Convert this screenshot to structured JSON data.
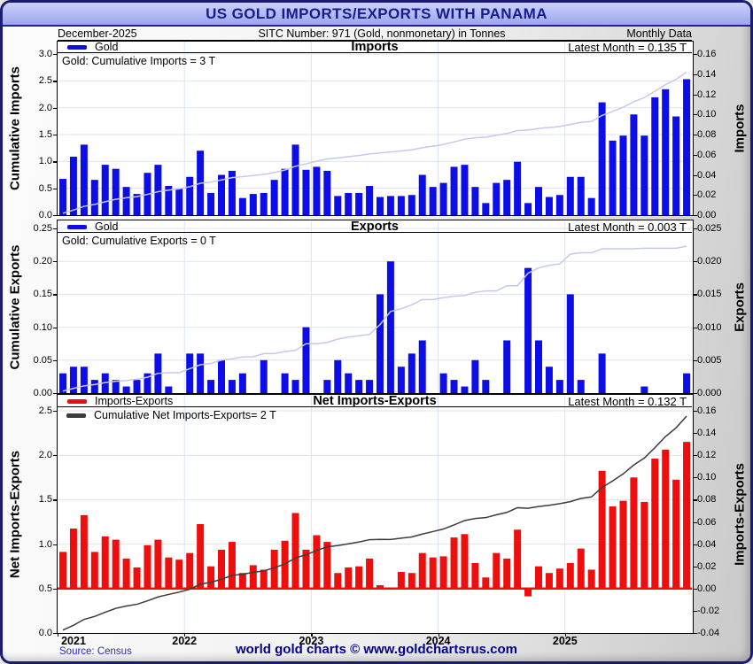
{
  "header": {
    "title": "US GOLD IMPORTS/EXPORTS WITH PANAMA"
  },
  "subheader": {
    "date": "December-2025",
    "sitc": "SITC Number: 971 (Gold, nonmonetary) in Tonnes",
    "frequency": "Monthly Data"
  },
  "footer": {
    "source": "Source: Census",
    "website": "world gold charts © www.goldchartsrus.com"
  },
  "colors": {
    "header_bg": "#b2b9f3",
    "header_text": "#1a1a8e",
    "bar_blue": "#0d0de8",
    "bar_red": "#ee0e0e",
    "cumulative_light_line": "#c7c9ec",
    "cumulative_dark_line": "#3c3c3c",
    "gridline": "#dce4f2",
    "source_text": "#2929c0",
    "website_text": "#00008c"
  },
  "x_axis": {
    "start": "2021-01",
    "end": "2025-12",
    "months_total": 60,
    "year_labels": [
      "2021",
      "2022",
      "2023",
      "2024",
      "2025"
    ],
    "year_month_index": [
      0,
      12,
      24,
      36,
      48
    ]
  },
  "chart_data": [
    {
      "type": "bar+line",
      "id": "imports",
      "title": "Imports",
      "latest": "Latest Month = 0.135 T",
      "legend_bar": "Gold",
      "legend_line": "Gold: Cumulative Imports = 3 T",
      "unit": "Tonnes",
      "bar_color": "#0d0de8",
      "line_color": "#c7c9ec",
      "left_axis": {
        "label": "Cumulative Imports",
        "range": [
          0,
          3.0
        ],
        "tick_labels": [
          "0.0",
          "0.5",
          "1.0",
          "1.5",
          "2.0",
          "2.5",
          "3.0"
        ],
        "tick_values": [
          0,
          0.5,
          1.0,
          1.5,
          2.0,
          2.5,
          3.0
        ]
      },
      "right_axis": {
        "label": "Imports",
        "range": [
          0,
          0.16
        ],
        "tick_labels": [
          "0.00",
          "0.02",
          "0.04",
          "0.06",
          "0.08",
          "0.10",
          "0.12",
          "0.14",
          "0.16"
        ],
        "tick_values": [
          0,
          0.02,
          0.04,
          0.06,
          0.08,
          0.1,
          0.12,
          0.14,
          0.16
        ]
      },
      "monthly_values": [
        0.036,
        0.058,
        0.07,
        0.035,
        0.05,
        0.046,
        0.028,
        0.021,
        0.042,
        0.05,
        0.029,
        0.026,
        0.038,
        0.064,
        0.022,
        0.04,
        0.044,
        0.017,
        0.021,
        0.022,
        0.035,
        0.046,
        0.07,
        0.045,
        0.048,
        0.044,
        0.019,
        0.022,
        0.022,
        0.029,
        0.018,
        0.019,
        0.019,
        0.02,
        0.04,
        0.028,
        0.032,
        0.048,
        0.05,
        0.028,
        0.012,
        0.032,
        0.035,
        0.053,
        0.012,
        0.028,
        0.018,
        0.02,
        0.038,
        0.038,
        0.017,
        0.112,
        0.074,
        0.079,
        0.1,
        0.079,
        0.117,
        0.125,
        0.098,
        0.135
      ],
      "cumulative_total": 2.663,
      "line_note": "light line = running cumulative total plotted on left axis"
    },
    {
      "type": "bar+line",
      "id": "exports",
      "title": "Exports",
      "latest": "Latest Month = 0.003 T",
      "legend_bar": "Gold",
      "legend_line": "Gold: Cumulative Exports = 0 T",
      "unit": "Tonnes",
      "bar_color": "#0d0de8",
      "line_color": "#c7c9ec",
      "left_axis": {
        "label": "Cumulative Exports",
        "range": [
          0,
          0.25
        ],
        "tick_labels": [
          "0.00",
          "0.05",
          "0.10",
          "0.15",
          "0.20",
          "0.25"
        ],
        "tick_values": [
          0,
          0.05,
          0.1,
          0.15,
          0.2,
          0.25
        ]
      },
      "right_axis": {
        "label": "Exports",
        "range": [
          0,
          0.025
        ],
        "tick_labels": [
          "0.000",
          "0.005",
          "0.010",
          "0.015",
          "0.020",
          "0.025"
        ],
        "tick_values": [
          0,
          0.005,
          0.01,
          0.015,
          0.02,
          0.025
        ]
      },
      "monthly_values": [
        0.003,
        0.004,
        0.004,
        0.002,
        0.003,
        0.002,
        0.001,
        0.002,
        0.003,
        0.006,
        0.001,
        0.0,
        0.006,
        0.006,
        0.002,
        0.005,
        0.002,
        0.003,
        0.0,
        0.005,
        0.0,
        0.003,
        0.002,
        0.01,
        0.0,
        0.002,
        0.005,
        0.003,
        0.002,
        0.002,
        0.015,
        0.02,
        0.004,
        0.006,
        0.008,
        0.0,
        0.003,
        0.002,
        0.001,
        0.005,
        0.002,
        0.0,
        0.008,
        0.0,
        0.019,
        0.008,
        0.004,
        0.002,
        0.015,
        0.002,
        0.0,
        0.006,
        0.0,
        0.0,
        0.0,
        0.001,
        0.0,
        0.0,
        0.0,
        0.003
      ],
      "cumulative_total": 0.223,
      "line_note": "light line = running cumulative total plotted on left axis"
    },
    {
      "type": "bar+line",
      "id": "net-imports-exports",
      "title": "Net Imports-Exports",
      "latest": "Latest Month = 0.132 T",
      "legend_bar": "Imports-Exports",
      "legend_line": "Cumulative Net Imports-Exports= 2 T",
      "unit": "Tonnes",
      "bar_color": "#ee0e0e",
      "line_color": "#3c3c3c",
      "baseline_color": "#ee0e0e",
      "left_axis": {
        "label": "Net Imports-Exports",
        "range": [
          0,
          2.5
        ],
        "tick_labels": [
          "0.0",
          "0.5",
          "1.0",
          "1.5",
          "2.0",
          "2.5"
        ],
        "tick_values": [
          0,
          0.5,
          1.0,
          1.5,
          2.0,
          2.5
        ]
      },
      "right_axis": {
        "label": "Imports-Exports",
        "range": [
          -0.04,
          0.16
        ],
        "tick_labels": [
          "-0.04",
          "-0.02",
          "0.00",
          "0.02",
          "0.04",
          "0.06",
          "0.08",
          "0.10",
          "0.12",
          "0.14",
          "0.16"
        ],
        "tick_values": [
          -0.04,
          -0.02,
          0,
          0.02,
          0.04,
          0.06,
          0.08,
          0.1,
          0.12,
          0.14,
          0.16
        ]
      },
      "monthly_values": [
        0.033,
        0.054,
        0.066,
        0.033,
        0.047,
        0.044,
        0.027,
        0.019,
        0.039,
        0.044,
        0.028,
        0.026,
        0.032,
        0.058,
        0.02,
        0.035,
        0.042,
        0.014,
        0.021,
        0.017,
        0.035,
        0.043,
        0.068,
        0.035,
        0.048,
        0.042,
        0.014,
        0.019,
        0.02,
        0.027,
        0.003,
        -0.001,
        0.015,
        0.014,
        0.032,
        0.028,
        0.029,
        0.046,
        0.049,
        0.023,
        0.01,
        0.032,
        0.027,
        0.053,
        -0.007,
        0.02,
        0.014,
        0.018,
        0.023,
        0.036,
        0.017,
        0.106,
        0.074,
        0.079,
        0.1,
        0.078,
        0.117,
        0.125,
        0.098,
        0.132
      ],
      "cumulative_total": 2.44,
      "line_note": "dark line = running cumulative net total plotted on left axis; red baseline at 0.00"
    }
  ]
}
